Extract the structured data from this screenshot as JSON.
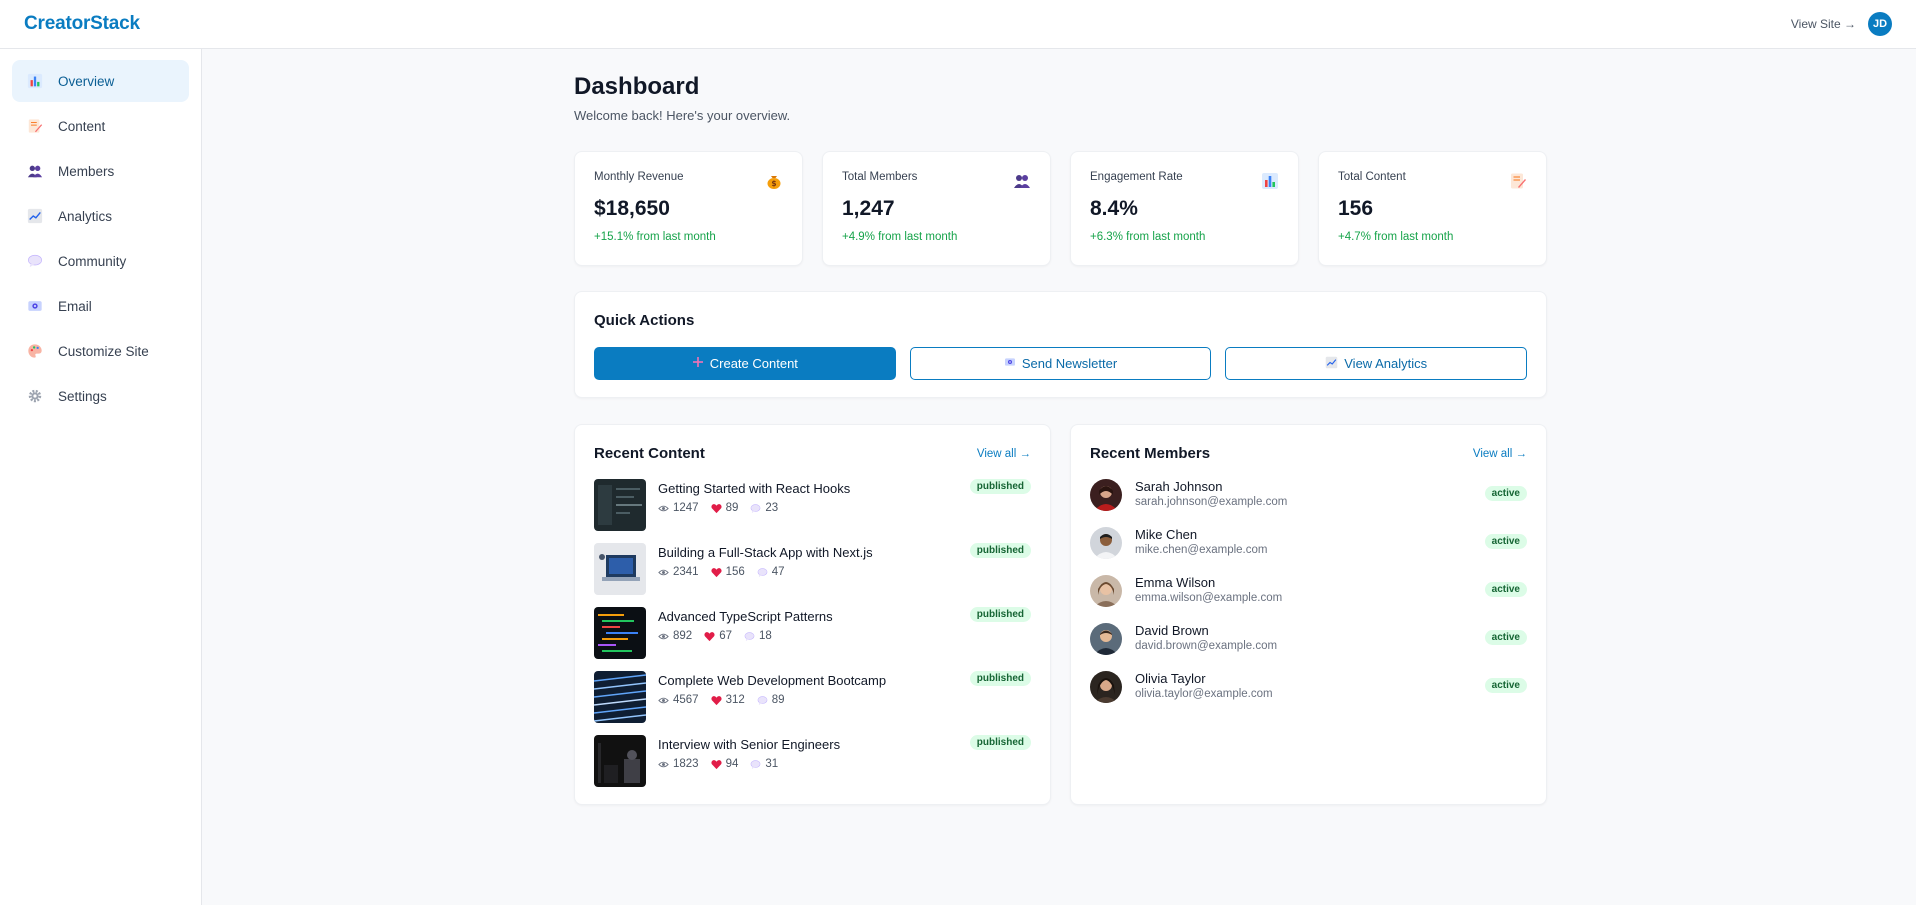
{
  "header": {
    "logo": "CreatorStack",
    "view_site": "View Site →",
    "user_initials": "JD"
  },
  "sidebar": {
    "items": [
      {
        "label": "Overview",
        "icon": "bar-chart-icon",
        "active": true
      },
      {
        "label": "Content",
        "icon": "memo-icon"
      },
      {
        "label": "Members",
        "icon": "users-icon"
      },
      {
        "label": "Analytics",
        "icon": "trend-chart-icon"
      },
      {
        "label": "Community",
        "icon": "speech-bubble-icon"
      },
      {
        "label": "Email",
        "icon": "email-icon"
      },
      {
        "label": "Customize Site",
        "icon": "palette-icon"
      },
      {
        "label": "Settings",
        "icon": "gear-icon"
      }
    ]
  },
  "page": {
    "title": "Dashboard",
    "subtitle": "Welcome back! Here's your overview."
  },
  "stats": [
    {
      "label": "Monthly Revenue",
      "value": "$18,650",
      "change": "+15.1% from last month",
      "icon": "money-bag-icon"
    },
    {
      "label": "Total Members",
      "value": "1,247",
      "change": "+4.9% from last month",
      "icon": "users-icon"
    },
    {
      "label": "Engagement Rate",
      "value": "8.4%",
      "change": "+6.3% from last month",
      "icon": "bar-chart-icon"
    },
    {
      "label": "Total Content",
      "value": "156",
      "change": "+4.7% from last month",
      "icon": "memo-icon"
    }
  ],
  "quick_actions": {
    "title": "Quick Actions",
    "create": "Create Content",
    "newsletter": "Send Newsletter",
    "analytics": "View Analytics"
  },
  "recent_content": {
    "title": "Recent Content",
    "view_all": "View all →",
    "items": [
      {
        "title": "Getting Started with React Hooks",
        "views": "1247",
        "likes": "89",
        "comments": "23",
        "status": "published"
      },
      {
        "title": "Building a Full-Stack App with Next.js",
        "views": "2341",
        "likes": "156",
        "comments": "47",
        "status": "published"
      },
      {
        "title": "Advanced TypeScript Patterns",
        "views": "892",
        "likes": "67",
        "comments": "18",
        "status": "published"
      },
      {
        "title": "Complete Web Development Bootcamp",
        "views": "4567",
        "likes": "312",
        "comments": "89",
        "status": "published"
      },
      {
        "title": "Interview with Senior Engineers",
        "views": "1823",
        "likes": "94",
        "comments": "31",
        "status": "published"
      }
    ]
  },
  "recent_members": {
    "title": "Recent Members",
    "view_all": "View all →",
    "items": [
      {
        "name": "Sarah Johnson",
        "email": "sarah.johnson@example.com",
        "status": "active"
      },
      {
        "name": "Mike Chen",
        "email": "mike.chen@example.com",
        "status": "active"
      },
      {
        "name": "Emma Wilson",
        "email": "emma.wilson@example.com",
        "status": "active"
      },
      {
        "name": "David Brown",
        "email": "david.brown@example.com",
        "status": "active"
      },
      {
        "name": "Olivia Taylor",
        "email": "olivia.taylor@example.com",
        "status": "active"
      }
    ]
  },
  "colors": {
    "brand": "#0a7cc1",
    "success": "#16a34a",
    "badge_bg": "#dcfce7",
    "heart": "#e11d48"
  }
}
